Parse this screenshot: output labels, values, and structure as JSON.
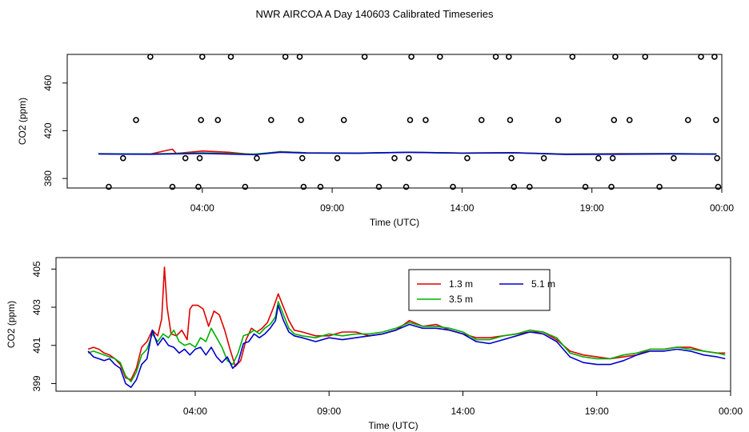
{
  "title": "NWR AIRCOA A  Day 140603  Calibrated Timeseries",
  "colors": {
    "red": "#e00000",
    "green": "#00b000",
    "blue": "#0000cc",
    "axis": "#000000"
  },
  "chart_data": [
    {
      "type": "scatter",
      "name": "top-panel",
      "xlabel": "Time (UTC)",
      "ylabel": "CO2 (ppm)",
      "xlim": [
        -1.2,
        24.0
      ],
      "ylim": [
        372,
        484
      ],
      "xticks": [
        4,
        9,
        14,
        19,
        24
      ],
      "xtick_labels": [
        "04:00",
        "09:00",
        "14:00",
        "19:00",
        "00:00"
      ],
      "yticks": [
        380,
        420,
        460
      ],
      "ytick_labels": [
        "380",
        "420",
        "460"
      ],
      "points": [
        [
          0.4,
          373
        ],
        [
          0.95,
          397
        ],
        [
          1.45,
          429
        ],
        [
          2.0,
          482
        ],
        [
          2.85,
          373
        ],
        [
          3.35,
          397
        ],
        [
          3.85,
          373
        ],
        [
          3.9,
          397
        ],
        [
          3.95,
          429
        ],
        [
          4.0,
          482
        ],
        [
          4.6,
          429
        ],
        [
          5.1,
          482
        ],
        [
          5.65,
          373
        ],
        [
          6.1,
          397
        ],
        [
          6.65,
          429
        ],
        [
          7.2,
          482
        ],
        [
          7.75,
          482
        ],
        [
          7.8,
          429
        ],
        [
          7.85,
          397
        ],
        [
          7.9,
          373
        ],
        [
          8.55,
          373
        ],
        [
          9.2,
          397
        ],
        [
          9.45,
          429
        ],
        [
          10.25,
          482
        ],
        [
          10.8,
          373
        ],
        [
          11.4,
          397
        ],
        [
          11.85,
          373
        ],
        [
          11.95,
          397
        ],
        [
          12.0,
          429
        ],
        [
          12.05,
          482
        ],
        [
          12.6,
          429
        ],
        [
          13.15,
          482
        ],
        [
          13.65,
          373
        ],
        [
          14.2,
          397
        ],
        [
          14.75,
          429
        ],
        [
          15.3,
          482
        ],
        [
          15.8,
          482
        ],
        [
          15.85,
          429
        ],
        [
          15.9,
          397
        ],
        [
          16.0,
          373
        ],
        [
          16.6,
          373
        ],
        [
          17.15,
          397
        ],
        [
          17.7,
          429
        ],
        [
          18.25,
          482
        ],
        [
          18.75,
          373
        ],
        [
          19.25,
          397
        ],
        [
          19.75,
          373
        ],
        [
          19.8,
          397
        ],
        [
          19.85,
          429
        ],
        [
          19.9,
          482
        ],
        [
          20.45,
          429
        ],
        [
          21.05,
          482
        ],
        [
          21.6,
          373
        ],
        [
          22.15,
          397
        ],
        [
          22.7,
          429
        ],
        [
          23.2,
          482
        ],
        [
          23.72,
          482
        ],
        [
          23.78,
          429
        ],
        [
          23.82,
          397
        ],
        [
          23.86,
          373
        ]
      ],
      "series": [
        {
          "name": "1.3 m",
          "color": "#e00000",
          "x": [
            0,
            2,
            2.85,
            3,
            4,
            5,
            6,
            7,
            8,
            10,
            12,
            14,
            16,
            18,
            20,
            22,
            23.8
          ],
          "y": [
            400.8,
            400.5,
            404.5,
            401,
            403,
            402,
            400,
            402.5,
            401.5,
            401.2,
            402,
            401.3,
            401.6,
            400.5,
            400.8,
            400.8,
            400.6
          ]
        },
        {
          "name": "3.5 m",
          "color": "#00b000",
          "x": [
            0,
            2,
            4,
            6,
            7,
            8,
            10,
            12,
            14,
            16,
            18,
            20,
            22,
            23.8
          ],
          "y": [
            400.7,
            400.6,
            401.5,
            400.4,
            402.3,
            401.5,
            401.3,
            402,
            401.3,
            401.6,
            400.4,
            400.6,
            400.8,
            400.6
          ]
        },
        {
          "name": "5.1 m",
          "color": "#0000cc",
          "x": [
            0,
            2,
            4,
            6,
            7,
            8,
            10,
            12,
            14,
            16,
            18,
            20,
            22,
            23.8
          ],
          "y": [
            400.5,
            400.3,
            401.0,
            400.0,
            402.0,
            401.3,
            401.1,
            401.9,
            401.2,
            401.5,
            400.1,
            400.3,
            400.6,
            400.4
          ]
        }
      ]
    },
    {
      "type": "line",
      "name": "bottom-panel",
      "xlabel": "Time (UTC)",
      "ylabel": "CO2 (ppm)",
      "xlim": [
        -1.2,
        24.0
      ],
      "ylim": [
        398.6,
        405.6
      ],
      "xticks": [
        4,
        9,
        14,
        19,
        24
      ],
      "xtick_labels": [
        "04:00",
        "09:00",
        "14:00",
        "19:00",
        "00:00"
      ],
      "yticks": [
        399,
        401,
        403,
        405
      ],
      "ytick_labels": [
        "399",
        "401",
        "403",
        "405"
      ],
      "legend": {
        "position": "top-center",
        "entries": [
          {
            "label": "1.3 m",
            "color": "#e00000"
          },
          {
            "label": "5.1 m",
            "color": "#0000cc"
          },
          {
            "label": "3.5 m",
            "color": "#00b000"
          }
        ]
      },
      "series": [
        {
          "name": "1.3 m",
          "color": "#e00000",
          "x": [
            0.0,
            0.2,
            0.4,
            0.6,
            0.8,
            1.0,
            1.2,
            1.4,
            1.6,
            1.8,
            2.0,
            2.2,
            2.4,
            2.6,
            2.75,
            2.85,
            2.95,
            3.1,
            3.3,
            3.5,
            3.7,
            3.8,
            3.9,
            4.1,
            4.3,
            4.5,
            4.7,
            4.9,
            5.1,
            5.3,
            5.5,
            5.7,
            5.9,
            6.1,
            6.3,
            6.5,
            6.7,
            6.9,
            7.1,
            7.3,
            7.5,
            7.7,
            8.0,
            8.5,
            9.0,
            9.5,
            10.0,
            10.5,
            11.0,
            11.5,
            12.0,
            12.5,
            13.0,
            13.5,
            14.0,
            14.5,
            15.0,
            15.5,
            16.0,
            16.5,
            17.0,
            17.5,
            18.0,
            18.5,
            19.0,
            19.5,
            20.0,
            20.5,
            21.0,
            21.5,
            22.0,
            22.5,
            23.0,
            23.5,
            23.8
          ],
          "y": [
            400.8,
            400.9,
            400.8,
            400.6,
            400.5,
            400.3,
            400.0,
            399.3,
            399.2,
            399.8,
            400.9,
            401.2,
            401.8,
            401.5,
            402.4,
            405.1,
            403.0,
            401.6,
            401.5,
            401.8,
            401.3,
            402.9,
            403.1,
            403.1,
            402.9,
            402.0,
            402.8,
            402.6,
            401.8,
            400.8,
            399.9,
            400.2,
            401.3,
            401.9,
            401.7,
            401.9,
            402.2,
            402.9,
            403.7,
            403.0,
            402.3,
            401.8,
            401.7,
            401.5,
            401.5,
            401.7,
            401.7,
            401.5,
            401.6,
            401.8,
            402.3,
            402.0,
            402.1,
            401.8,
            401.6,
            401.4,
            401.4,
            401.5,
            401.6,
            401.7,
            401.7,
            401.3,
            400.7,
            400.5,
            400.4,
            400.3,
            400.4,
            400.5,
            400.8,
            400.8,
            400.9,
            400.9,
            400.7,
            400.6,
            400.6
          ]
        },
        {
          "name": "3.5 m",
          "color": "#00b000",
          "x": [
            0.0,
            0.2,
            0.4,
            0.6,
            0.8,
            1.0,
            1.2,
            1.4,
            1.6,
            1.8,
            2.0,
            2.2,
            2.4,
            2.6,
            2.8,
            3.0,
            3.2,
            3.4,
            3.6,
            3.8,
            4.0,
            4.2,
            4.4,
            4.6,
            4.8,
            5.0,
            5.2,
            5.4,
            5.6,
            5.8,
            6.0,
            6.2,
            6.4,
            6.6,
            6.8,
            7.0,
            7.1,
            7.3,
            7.5,
            7.7,
            8.0,
            8.5,
            9.0,
            9.5,
            10.0,
            10.5,
            11.0,
            11.5,
            12.0,
            12.5,
            13.0,
            13.5,
            14.0,
            14.5,
            15.0,
            15.5,
            16.0,
            16.5,
            17.0,
            17.5,
            18.0,
            18.5,
            19.0,
            19.5,
            20.0,
            20.5,
            21.0,
            21.5,
            22.0,
            22.5,
            23.0,
            23.5,
            23.8
          ],
          "y": [
            400.6,
            400.7,
            400.6,
            400.5,
            400.4,
            400.3,
            400.1,
            399.4,
            399.1,
            399.6,
            400.5,
            400.8,
            401.6,
            401.2,
            401.6,
            401.4,
            401.8,
            401.2,
            401.0,
            401.1,
            400.9,
            401.4,
            401.2,
            401.9,
            401.4,
            400.9,
            400.2,
            400.0,
            400.6,
            401.5,
            401.6,
            401.8,
            401.6,
            401.9,
            402.1,
            402.5,
            403.3,
            402.6,
            401.9,
            401.6,
            401.5,
            401.4,
            401.6,
            401.5,
            401.6,
            401.6,
            401.7,
            401.9,
            402.2,
            402.0,
            402.0,
            401.9,
            401.7,
            401.3,
            401.3,
            401.5,
            401.6,
            401.8,
            401.7,
            401.4,
            400.6,
            400.4,
            400.3,
            400.3,
            400.5,
            400.6,
            400.8,
            400.8,
            400.9,
            400.8,
            400.7,
            400.6,
            400.5
          ]
        },
        {
          "name": "5.1 m",
          "color": "#0000cc",
          "x": [
            0.0,
            0.2,
            0.4,
            0.6,
            0.8,
            1.0,
            1.2,
            1.4,
            1.6,
            1.8,
            2.0,
            2.2,
            2.4,
            2.6,
            2.8,
            3.0,
            3.2,
            3.4,
            3.6,
            3.8,
            4.0,
            4.2,
            4.4,
            4.6,
            4.8,
            5.0,
            5.2,
            5.4,
            5.6,
            5.8,
            6.0,
            6.2,
            6.4,
            6.6,
            6.8,
            7.0,
            7.1,
            7.3,
            7.5,
            7.7,
            8.0,
            8.5,
            9.0,
            9.5,
            10.0,
            10.5,
            11.0,
            11.5,
            12.0,
            12.5,
            13.0,
            13.5,
            14.0,
            14.5,
            15.0,
            15.5,
            16.0,
            16.5,
            17.0,
            17.5,
            18.0,
            18.5,
            19.0,
            19.5,
            20.0,
            20.5,
            21.0,
            21.5,
            22.0,
            22.5,
            23.0,
            23.5,
            23.8
          ],
          "y": [
            400.7,
            400.4,
            400.3,
            400.2,
            400.3,
            400.0,
            399.8,
            399.0,
            398.8,
            399.2,
            400.0,
            400.3,
            401.8,
            401.0,
            401.4,
            401.0,
            400.9,
            400.6,
            400.8,
            400.5,
            400.8,
            400.9,
            400.5,
            400.9,
            400.4,
            400.1,
            400.4,
            399.8,
            400.1,
            401.1,
            401.2,
            401.6,
            401.4,
            401.6,
            401.9,
            402.3,
            403.1,
            402.3,
            401.7,
            401.5,
            401.4,
            401.2,
            401.4,
            401.3,
            401.4,
            401.5,
            401.6,
            401.8,
            402.1,
            401.9,
            401.9,
            401.8,
            401.6,
            401.2,
            401.1,
            401.3,
            401.5,
            401.7,
            401.6,
            401.2,
            400.4,
            400.1,
            400.0,
            400.0,
            400.2,
            400.5,
            400.7,
            400.7,
            400.8,
            400.7,
            400.5,
            400.4,
            400.3
          ]
        }
      ]
    }
  ]
}
